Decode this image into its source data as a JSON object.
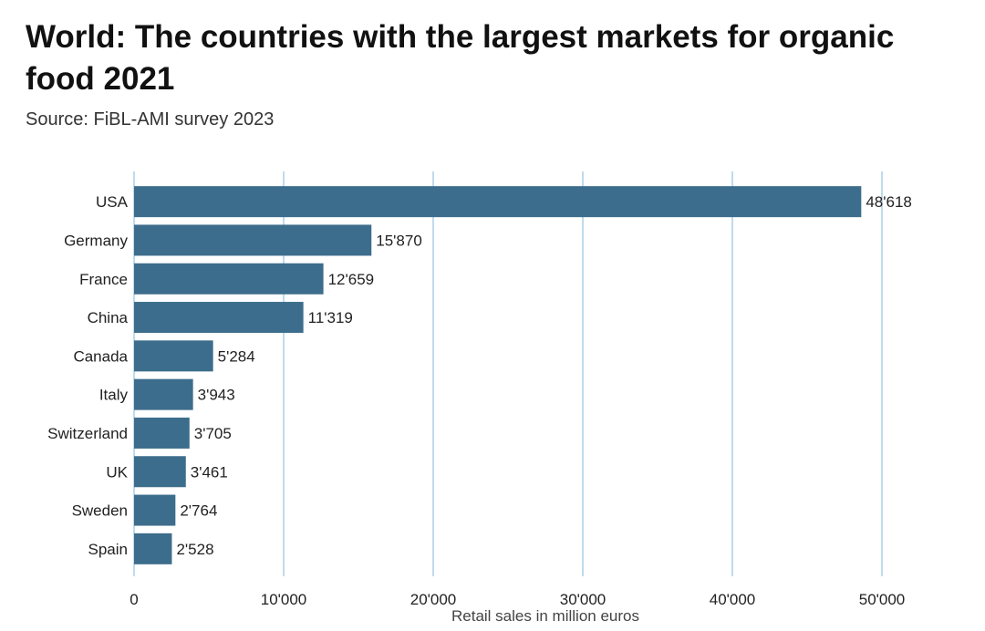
{
  "title": "World: The countries with the largest markets for organic food 2021",
  "subtitle": "Source: FiBL-AMI survey 2023",
  "colors": {
    "bar": "#3d6d8c",
    "grid": "#a9d0e6",
    "text": "#222222"
  },
  "chart_data": {
    "type": "bar",
    "orientation": "horizontal",
    "title": "World: The countries with the largest markets for organic food 2021",
    "subtitle": "Source: FiBL-AMI survey 2023",
    "categories": [
      "USA",
      "Germany",
      "France",
      "China",
      "Canada",
      "Italy",
      "Switzerland",
      "UK",
      "Sweden",
      "Spain"
    ],
    "values": [
      48618,
      15870,
      12659,
      11319,
      5284,
      3943,
      3705,
      3461,
      2764,
      2528
    ],
    "value_labels": [
      "48'618",
      "15'870",
      "12'659",
      "11'319",
      "5'284",
      "3'943",
      "3'705",
      "3'461",
      "2'764",
      "2'528"
    ],
    "xlabel": "Retail sales in million euros",
    "ylabel": "",
    "xlim": [
      0,
      50000
    ],
    "xticks": [
      0,
      10000,
      20000,
      30000,
      40000,
      50000
    ],
    "xtick_labels": [
      "0",
      "10'000",
      "20'000",
      "30'000",
      "40'000",
      "50'000"
    ],
    "grid": true,
    "legend": "none"
  }
}
